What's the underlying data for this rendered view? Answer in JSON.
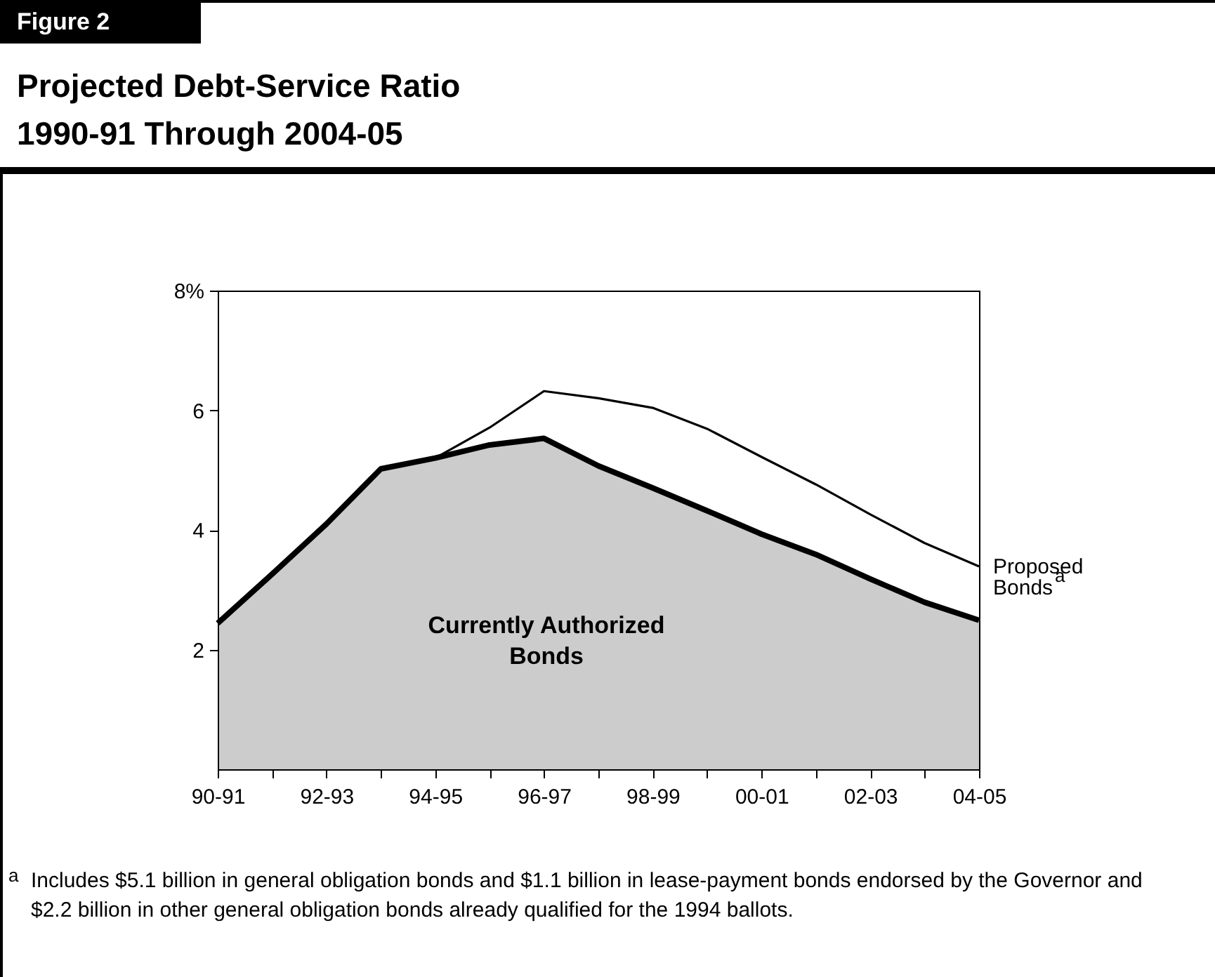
{
  "chart_data": {
    "type": "area",
    "subtitle": "Figure 2",
    "title": "Projected Debt-Service Ratio 1990-91 Through 2004-05",
    "categories": [
      "90-91",
      null,
      "92-93",
      null,
      "94-95",
      null,
      "96-97",
      null,
      "98-99",
      null,
      "00-01",
      null,
      "02-03",
      null,
      "04-05"
    ],
    "series": [
      {
        "name": "Proposed Bonds$^{a}$",
        "type": "line",
        "color": "#000000",
        "values": [
          2.44,
          3.26,
          4.1,
          5.02,
          5.2,
          5.71,
          6.32,
          6.2,
          6.04,
          5.69,
          5.22,
          4.76,
          4.26,
          3.78,
          3.39
        ]
      },
      {
        "name": "Currently Authorized Bonds",
        "type": "area",
        "color": "#000000",
        "values": [
          2.44,
          3.26,
          4.1,
          5.02,
          5.2,
          5.42,
          5.53,
          5.07,
          4.7,
          4.32,
          3.93,
          3.59,
          3.18,
          2.79,
          2.49
        ]
      }
    ],
    "ylim": [
      0,
      8
    ],
    "yticks": [
      {
        "value": 8,
        "label": "8%"
      },
      6,
      4,
      2
    ],
    "grid": false,
    "legend": false,
    "annotations": [
      "$^{a}$Includes $5.1 billion in general obligation bonds and $1.1 billion in lease-payment bonds endorsed by the Governor and $2.2 billion in other general obligation bonds already qualified for the 1994 ballots."
    ]
  }
}
